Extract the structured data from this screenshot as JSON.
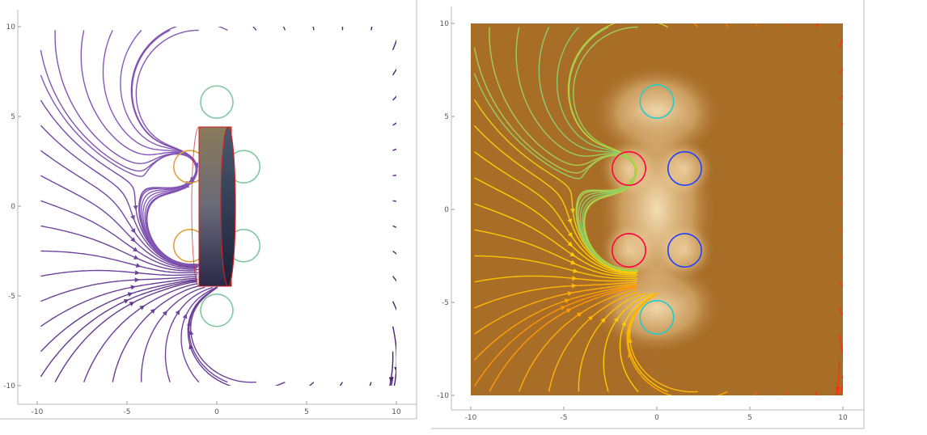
{
  "chart_data": [
    {
      "type": "streamplot",
      "xlim": [
        -10,
        10
      ],
      "ylim": [
        -10,
        10
      ],
      "x_ticks": [
        -10,
        -5,
        0,
        5,
        10
      ],
      "y_ticks": [
        -10,
        -5,
        0,
        5,
        10
      ],
      "x_tick_labels": [
        "-10",
        "-5",
        "0",
        "5",
        "10"
      ],
      "y_tick_labels": [
        "-10",
        "-5",
        "0",
        "5",
        "10"
      ],
      "background": "#ffffff",
      "color_scheme": "purple-to-green (magnitude)",
      "colors": {
        "low": "#9a6ad0",
        "high": "#4a2170"
      },
      "object": {
        "shape": "cylinder (side view)",
        "x_range": [
          -1,
          1
        ],
        "y_range": [
          -4.5,
          4.5
        ],
        "rim_color": "#cc2222"
      },
      "vortices": [
        {
          "x": 0,
          "y": 5.8,
          "color": "#7fc8a0"
        },
        {
          "x": -1.5,
          "y": 2.2,
          "color": "#e0a040"
        },
        {
          "x": 1.5,
          "y": 2.2,
          "color": "#7fc8a0"
        },
        {
          "x": -1.5,
          "y": -2.2,
          "color": "#e0a040"
        },
        {
          "x": 1.5,
          "y": -2.2,
          "color": "#7fc8a0"
        },
        {
          "x": 0,
          "y": -5.8,
          "color": "#7fc8a0"
        }
      ]
    },
    {
      "type": "streamdensityplot",
      "xlim": [
        -10,
        10
      ],
      "ylim": [
        -10,
        10
      ],
      "x_ticks": [
        -10,
        -5,
        0,
        5,
        10
      ],
      "y_ticks": [
        -10,
        -5,
        0,
        5,
        10
      ],
      "x_tick_labels": [
        "-10",
        "-5",
        "0",
        "5",
        "10"
      ],
      "y_tick_labels": [
        "-10",
        "-5",
        "0",
        "5",
        "10"
      ],
      "background": "#a86e28",
      "highlight": "#f4dcae",
      "color_scheme": "rainbow (magnitude)",
      "colors": {
        "low": "#ff3010",
        "mid": "#ffd000",
        "high": "#22cccc"
      },
      "vortices": [
        {
          "x": 0,
          "y": 5.8,
          "color": "#22cccc"
        },
        {
          "x": -1.5,
          "y": 2.2,
          "color": "#ff0040"
        },
        {
          "x": 1.5,
          "y": 2.2,
          "color": "#2040ff"
        },
        {
          "x": -1.5,
          "y": -2.2,
          "color": "#ff0040"
        },
        {
          "x": 1.5,
          "y": -2.2,
          "color": "#2040ff"
        },
        {
          "x": 0,
          "y": -5.8,
          "color": "#22cccc"
        }
      ]
    }
  ]
}
